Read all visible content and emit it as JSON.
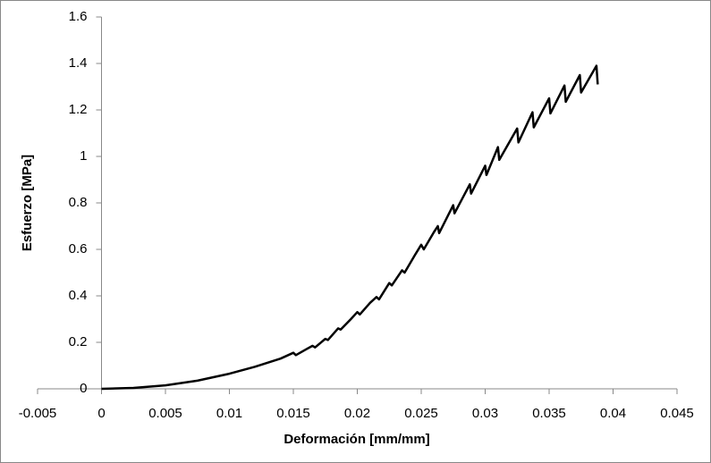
{
  "chart_data": {
    "type": "line",
    "x_label": "Deformación [mm/mm]",
    "y_label": "Esfuerzo [MPa]",
    "x": [
      0,
      0.0025,
      0.005,
      0.0075,
      0.01,
      0.012,
      0.014,
      0.015,
      0.0152,
      0.016,
      0.0165,
      0.0167,
      0.0175,
      0.0177,
      0.0185,
      0.0187,
      0.0195,
      0.02,
      0.0202,
      0.021,
      0.0215,
      0.0217,
      0.0225,
      0.0227,
      0.0235,
      0.0237,
      0.0245,
      0.025,
      0.0252,
      0.026,
      0.0263,
      0.0264,
      0.0275,
      0.0276,
      0.0288,
      0.0289,
      0.03,
      0.0301,
      0.031,
      0.0311,
      0.0325,
      0.0326,
      0.0337,
      0.0338,
      0.035,
      0.0351,
      0.0362,
      0.0363,
      0.0374,
      0.0375,
      0.0387,
      0.0388
    ],
    "values": [
      0,
      0.004,
      0.015,
      0.035,
      0.065,
      0.095,
      0.13,
      0.155,
      0.145,
      0.17,
      0.185,
      0.178,
      0.215,
      0.21,
      0.26,
      0.255,
      0.3,
      0.33,
      0.32,
      0.37,
      0.395,
      0.385,
      0.455,
      0.445,
      0.51,
      0.5,
      0.575,
      0.62,
      0.6,
      0.675,
      0.7,
      0.67,
      0.79,
      0.755,
      0.88,
      0.84,
      0.96,
      0.92,
      1.04,
      0.985,
      1.12,
      1.06,
      1.19,
      1.125,
      1.25,
      1.185,
      1.305,
      1.235,
      1.35,
      1.275,
      1.39,
      1.31
    ],
    "color": "#000000",
    "xlim": [
      -0.005,
      0.045
    ],
    "xticks": [
      -0.005,
      0,
      0.005,
      0.01,
      0.015,
      0.02,
      0.025,
      0.03,
      0.035,
      0.04,
      0.045
    ],
    "ylim": [
      0,
      1.6
    ],
    "yticks": [
      0,
      0.2,
      0.4,
      0.6,
      0.8,
      1,
      1.2,
      1.4,
      1.6
    ],
    "grid": false
  }
}
